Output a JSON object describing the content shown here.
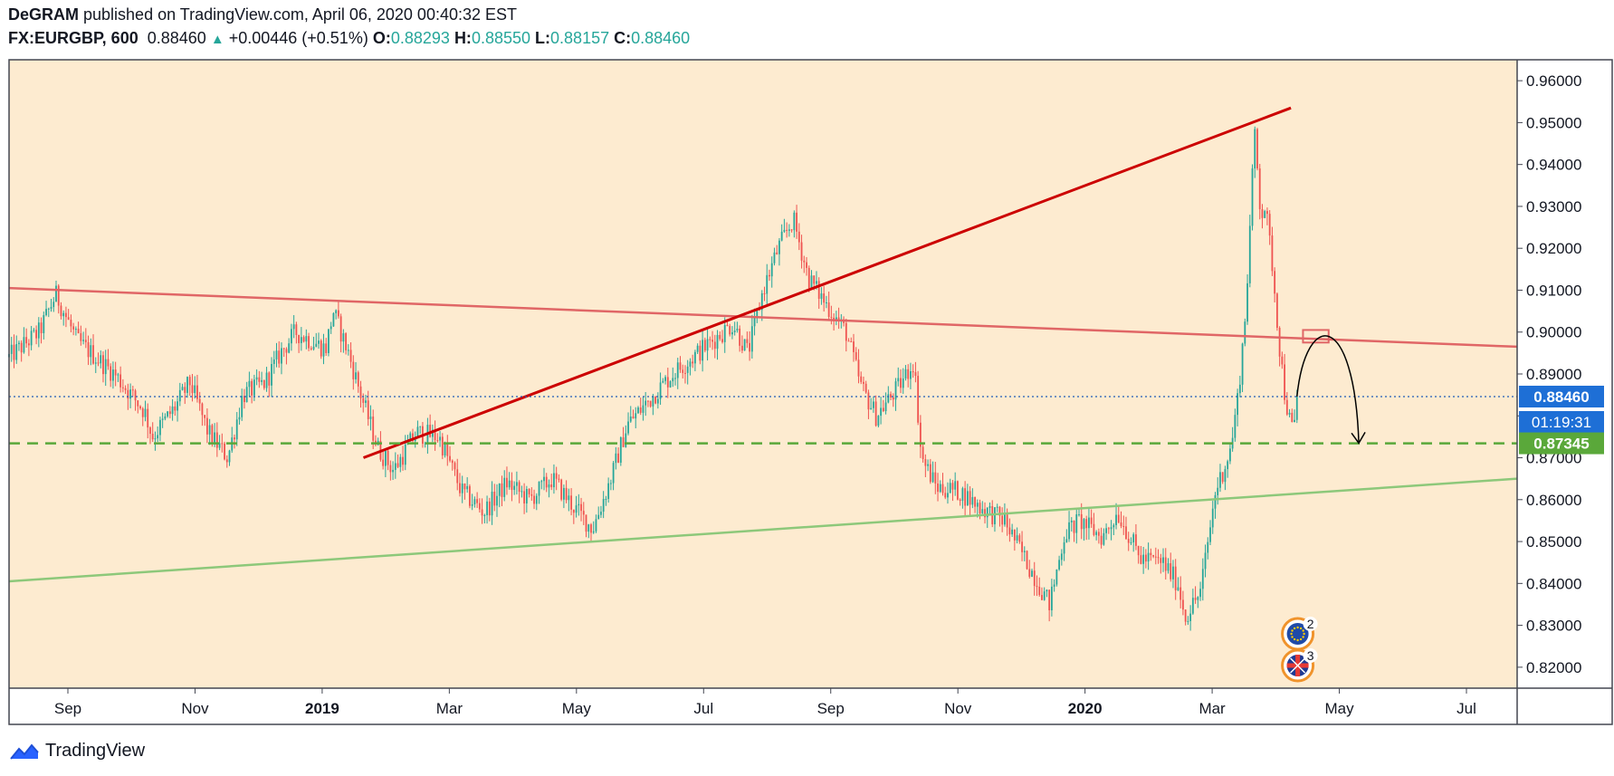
{
  "header": {
    "author": "DeGRAM",
    "published": " published on TradingView.com, April 06, 2020 00:40:32 EST",
    "symbol": "FX:EURGBP, 600",
    "price": "0.88460",
    "change": "+0.00446 (+0.51%)",
    "o_label": "O:",
    "o_value": "0.88293",
    "h_label": "H:",
    "h_value": "0.88550",
    "l_label": "L:",
    "l_value": "0.88157",
    "c_label": "C:",
    "c_value": "0.88460"
  },
  "footer": {
    "brand": "TradingView"
  },
  "colors": {
    "background": "#fdebd0",
    "up": "#26a69a",
    "down": "#ef5350",
    "resistance": "#e06666",
    "trend": "#cc0000",
    "support": "#8dc87a",
    "level": "#5aa83a",
    "price_line": "#1e5bb8",
    "price_badge": "#1e6fd6",
    "level_badge": "#5aa83a"
  },
  "chart_data": {
    "type": "candlestick",
    "symbol": "FX:EURGBP",
    "timeframe": "600",
    "title": "EURGBP",
    "xlabel": "",
    "ylabel": "",
    "ylim": [
      0.815,
      0.965
    ],
    "yticks": [
      "0.96000",
      "0.95000",
      "0.94000",
      "0.93000",
      "0.92000",
      "0.91000",
      "0.90000",
      "0.89000",
      "0.88000",
      "0.87000",
      "0.86000",
      "0.85000",
      "0.84000",
      "0.83000",
      "0.82000"
    ],
    "xticks": [
      {
        "label": "Sep",
        "bold": false
      },
      {
        "label": "Nov",
        "bold": false
      },
      {
        "label": "2019",
        "bold": true
      },
      {
        "label": "Mar",
        "bold": false
      },
      {
        "label": "May",
        "bold": false
      },
      {
        "label": "Jul",
        "bold": false
      },
      {
        "label": "Sep",
        "bold": false
      },
      {
        "label": "Nov",
        "bold": false
      },
      {
        "label": "2020",
        "bold": true
      },
      {
        "label": "Mar",
        "bold": false
      },
      {
        "label": "May",
        "bold": false
      },
      {
        "label": "Jul",
        "bold": false
      }
    ],
    "price_path": [
      [
        0,
        0.894
      ],
      [
        0.02,
        0.9
      ],
      [
        0.031,
        0.909
      ],
      [
        0.045,
        0.898
      ],
      [
        0.07,
        0.89
      ],
      [
        0.09,
        0.881
      ],
      [
        0.095,
        0.875
      ],
      [
        0.11,
        0.882
      ],
      [
        0.12,
        0.888
      ],
      [
        0.132,
        0.876
      ],
      [
        0.145,
        0.87
      ],
      [
        0.155,
        0.885
      ],
      [
        0.17,
        0.888
      ],
      [
        0.18,
        0.895
      ],
      [
        0.19,
        0.9
      ],
      [
        0.21,
        0.896
      ],
      [
        0.215,
        0.905
      ],
      [
        0.225,
        0.895
      ],
      [
        0.235,
        0.883
      ],
      [
        0.245,
        0.872
      ],
      [
        0.255,
        0.867
      ],
      [
        0.27,
        0.876
      ],
      [
        0.285,
        0.875
      ],
      [
        0.3,
        0.862
      ],
      [
        0.315,
        0.857
      ],
      [
        0.33,
        0.864
      ],
      [
        0.345,
        0.86
      ],
      [
        0.36,
        0.865
      ],
      [
        0.375,
        0.858
      ],
      [
        0.387,
        0.853
      ],
      [
        0.4,
        0.866
      ],
      [
        0.41,
        0.878
      ],
      [
        0.425,
        0.884
      ],
      [
        0.44,
        0.89
      ],
      [
        0.46,
        0.896
      ],
      [
        0.48,
        0.902
      ],
      [
        0.49,
        0.895
      ],
      [
        0.5,
        0.91
      ],
      [
        0.51,
        0.92
      ],
      [
        0.52,
        0.927
      ],
      [
        0.53,
        0.913
      ],
      [
        0.545,
        0.905
      ],
      [
        0.555,
        0.9
      ],
      [
        0.565,
        0.887
      ],
      [
        0.575,
        0.88
      ],
      [
        0.59,
        0.887
      ],
      [
        0.6,
        0.893
      ],
      [
        0.605,
        0.87
      ],
      [
        0.615,
        0.863
      ],
      [
        0.63,
        0.862
      ],
      [
        0.645,
        0.858
      ],
      [
        0.66,
        0.855
      ],
      [
        0.675,
        0.845
      ],
      [
        0.69,
        0.835
      ],
      [
        0.7,
        0.852
      ],
      [
        0.71,
        0.855
      ],
      [
        0.725,
        0.851
      ],
      [
        0.735,
        0.857
      ],
      [
        0.75,
        0.846
      ],
      [
        0.765,
        0.845
      ],
      [
        0.775,
        0.84
      ],
      [
        0.78,
        0.832
      ],
      [
        0.79,
        0.838
      ],
      [
        0.8,
        0.862
      ],
      [
        0.81,
        0.872
      ],
      [
        0.815,
        0.885
      ],
      [
        0.82,
        0.905
      ],
      [
        0.826,
        0.948
      ],
      [
        0.83,
        0.928
      ],
      [
        0.833,
        0.93
      ],
      [
        0.838,
        0.915
      ],
      [
        0.842,
        0.898
      ],
      [
        0.846,
        0.885
      ],
      [
        0.85,
        0.877
      ],
      [
        0.853,
        0.878
      ],
      [
        0.854,
        0.8846
      ]
    ],
    "lines": [
      {
        "name": "descending resistance",
        "kind": "trendline",
        "points": [
          [
            0.0,
            0.9105
          ],
          [
            1.0,
            0.8965
          ]
        ]
      },
      {
        "name": "rising trendline",
        "kind": "trendline",
        "points": [
          [
            0.235,
            0.87
          ],
          [
            0.85,
            0.9535
          ]
        ]
      },
      {
        "name": "rising support",
        "kind": "trendline",
        "points": [
          [
            0.0,
            0.8405
          ],
          [
            1.0,
            0.865
          ]
        ]
      },
      {
        "name": "target level",
        "kind": "horizontal",
        "value": 0.87345
      },
      {
        "name": "current price",
        "kind": "horizontal",
        "value": 0.8846
      }
    ],
    "projection": {
      "from": [
        0.854,
        0.8846
      ],
      "peak": [
        0.868,
        0.899
      ],
      "to": [
        0.895,
        0.8735
      ]
    },
    "resistance_box": {
      "x": [
        0.858,
        0.875
      ],
      "y": [
        0.8975,
        0.9005
      ]
    },
    "last_price": "0.88460",
    "countdown": "01:19:31",
    "target_label": "0.87345",
    "events": [
      {
        "flag": "EU",
        "count": "2"
      },
      {
        "flag": "GB",
        "count": "3"
      }
    ]
  }
}
